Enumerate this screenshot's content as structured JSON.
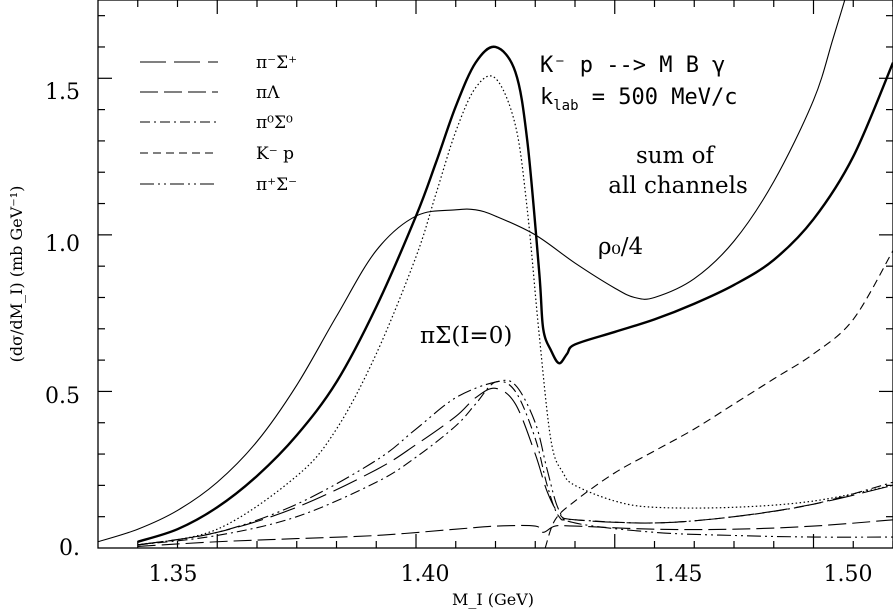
{
  "chart_data": {
    "type": "line",
    "xlabel": "M_I (GeV)",
    "ylabel": "(dσ/dM_I)  (mb GeV⁻¹)",
    "xlim": [
      1.32,
      1.52
    ],
    "ylim": [
      0,
      1.75
    ],
    "grid": false,
    "legend_position": "top-left",
    "x_ticks": [
      1.35,
      1.4,
      1.45,
      1.5
    ],
    "x_tick_labels": [
      "1.35",
      "1.40",
      "1.45",
      "1.50"
    ],
    "y_ticks": [
      0,
      0.5,
      1.0,
      1.5
    ],
    "y_tick_labels": [
      "0.",
      "0.5",
      "1.0",
      "1.5"
    ],
    "annotations": {
      "reaction": "K⁻ p  -->  M B γ",
      "klab_prefix": "k",
      "klab_sub": "lab",
      "klab_value": " = 500 MeV/c",
      "sum_line1": "sum of",
      "sum_line2": "all channels",
      "rho": "ρ₀/4",
      "pisigma": "πΣ(I=0)"
    },
    "series": [
      {
        "name": "π⁻Σ⁺",
        "style": "long-dash",
        "x": [
          1.33,
          1.35,
          1.37,
          1.39,
          1.4,
          1.41,
          1.415,
          1.42,
          1.425,
          1.43,
          1.433,
          1.436,
          1.44,
          1.46,
          1.48,
          1.5,
          1.52
        ],
        "values": [
          0.01,
          0.05,
          0.13,
          0.25,
          0.33,
          0.42,
          0.48,
          0.51,
          0.46,
          0.3,
          0.18,
          0.11,
          0.09,
          0.08,
          0.1,
          0.14,
          0.2
        ]
      },
      {
        "name": "πΛ",
        "style": "medium-dash",
        "x": [
          1.33,
          1.35,
          1.37,
          1.39,
          1.41,
          1.42,
          1.43,
          1.432,
          1.435,
          1.44,
          1.46,
          1.48,
          1.5,
          1.52
        ],
        "values": [
          0.005,
          0.02,
          0.03,
          0.04,
          0.06,
          0.07,
          0.07,
          0.05,
          0.07,
          0.07,
          0.06,
          0.06,
          0.07,
          0.09
        ]
      },
      {
        "name": "π⁰Σ⁰",
        "style": "dash-dot",
        "x": [
          1.33,
          1.35,
          1.37,
          1.39,
          1.4,
          1.41,
          1.415,
          1.42,
          1.425,
          1.43,
          1.433,
          1.436,
          1.44,
          1.46,
          1.48,
          1.5,
          1.52
        ],
        "values": [
          0.01,
          0.04,
          0.1,
          0.21,
          0.29,
          0.39,
          0.46,
          0.53,
          0.5,
          0.35,
          0.2,
          0.1,
          0.09,
          0.08,
          0.1,
          0.14,
          0.21
        ]
      },
      {
        "name": "K⁻ p",
        "style": "short-dash",
        "x": [
          1.4325,
          1.435,
          1.44,
          1.45,
          1.46,
          1.47,
          1.48,
          1.49,
          1.5,
          1.51,
          1.52
        ],
        "values": [
          0.0,
          0.09,
          0.15,
          0.24,
          0.31,
          0.38,
          0.46,
          0.54,
          0.62,
          0.73,
          0.95
        ]
      },
      {
        "name": "π⁺Σ⁻",
        "style": "dash-dot-dot",
        "x": [
          1.33,
          1.35,
          1.37,
          1.39,
          1.4,
          1.41,
          1.42,
          1.425,
          1.43,
          1.433,
          1.436,
          1.44,
          1.46,
          1.48,
          1.5,
          1.52
        ],
        "values": [
          0.01,
          0.05,
          0.14,
          0.28,
          0.38,
          0.48,
          0.53,
          0.52,
          0.4,
          0.25,
          0.12,
          0.08,
          0.05,
          0.04,
          0.035,
          0.035
        ]
      },
      {
        "name": "sum of all channels",
        "style": "thick-solid",
        "x": [
          1.33,
          1.34,
          1.35,
          1.36,
          1.37,
          1.38,
          1.39,
          1.4,
          1.405,
          1.41,
          1.415,
          1.42,
          1.425,
          1.428,
          1.431,
          1.432,
          1.434,
          1.436,
          1.438,
          1.44,
          1.45,
          1.46,
          1.47,
          1.48,
          1.49,
          1.5,
          1.51,
          1.52
        ],
        "values": [
          0.02,
          0.06,
          0.13,
          0.23,
          0.36,
          0.53,
          0.77,
          1.06,
          1.23,
          1.41,
          1.55,
          1.6,
          1.52,
          1.3,
          0.88,
          0.7,
          0.63,
          0.59,
          0.62,
          0.65,
          0.69,
          0.73,
          0.78,
          0.84,
          0.92,
          1.05,
          1.25,
          1.55
        ]
      },
      {
        "name": "ρ₀/4",
        "style": "thin-solid",
        "x": [
          1.32,
          1.33,
          1.34,
          1.35,
          1.36,
          1.37,
          1.38,
          1.39,
          1.4,
          1.41,
          1.415,
          1.42,
          1.43,
          1.44,
          1.45,
          1.455,
          1.46,
          1.47,
          1.48,
          1.49,
          1.5,
          1.505,
          1.51
        ],
        "values": [
          0.02,
          0.06,
          0.12,
          0.21,
          0.34,
          0.52,
          0.74,
          0.95,
          1.06,
          1.08,
          1.08,
          1.06,
          1.0,
          0.91,
          0.83,
          0.8,
          0.8,
          0.86,
          0.98,
          1.17,
          1.43,
          1.63,
          1.84
        ]
      },
      {
        "name": "πΣ(I=0)",
        "style": "dotted",
        "x": [
          1.33,
          1.35,
          1.37,
          1.38,
          1.39,
          1.4,
          1.405,
          1.41,
          1.415,
          1.42,
          1.425,
          1.428,
          1.431,
          1.434,
          1.437,
          1.44,
          1.45,
          1.46,
          1.48,
          1.5,
          1.52
        ],
        "values": [
          0.01,
          0.06,
          0.23,
          0.38,
          0.62,
          0.93,
          1.13,
          1.33,
          1.47,
          1.5,
          1.35,
          1.08,
          0.68,
          0.34,
          0.24,
          0.2,
          0.15,
          0.13,
          0.13,
          0.15,
          0.2
        ]
      }
    ]
  }
}
